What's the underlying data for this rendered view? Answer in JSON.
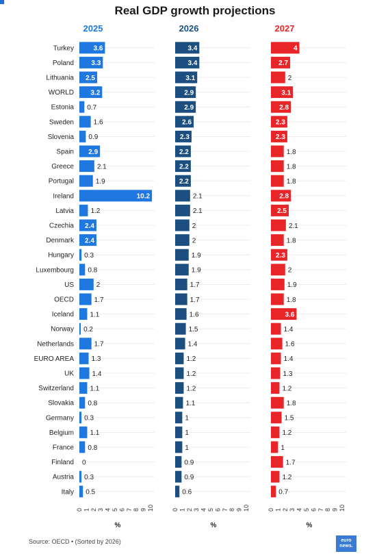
{
  "title": "Real GDP growth projections",
  "source": "Source: OECD • (Sorted by 2026)",
  "logo_text": "euro news.",
  "colors": {
    "y2025": "#1f77e0",
    "y2026": "#1c4f80",
    "y2027": "#e8262a"
  },
  "chart_data": {
    "type": "bar",
    "orientation": "horizontal",
    "title": "Real GDP growth projections",
    "categories": [
      "Turkey",
      "Poland",
      "Lithuania",
      "WORLD",
      "Estonia",
      "Sweden",
      "Slovenia",
      "Spain",
      "Greece",
      "Portugal",
      "Ireland",
      "Latvia",
      "Czechia",
      "Denmark",
      "Hungary",
      "Luxembourg",
      "US",
      "OECD",
      "Iceland",
      "Norway",
      "Netherlands",
      "EURO AREA",
      "UK",
      "Switzerland",
      "Slovakia",
      "Germany",
      "Belgium",
      "France",
      "Finland",
      "Austria",
      "Italy"
    ],
    "series": [
      {
        "name": "2025",
        "values": [
          3.6,
          3.3,
          2.5,
          3.2,
          0.7,
          1.6,
          0.9,
          2.9,
          2.1,
          1.9,
          10.2,
          1.2,
          2.4,
          2.4,
          0.3,
          0.8,
          2,
          1.7,
          1.1,
          0.2,
          1.7,
          1.3,
          1.4,
          1.1,
          0.8,
          0.3,
          1.1,
          0.8,
          0,
          0.3,
          0.5
        ]
      },
      {
        "name": "2026",
        "values": [
          3.4,
          3.4,
          3.1,
          2.9,
          2.9,
          2.6,
          2.3,
          2.2,
          2.2,
          2.2,
          2.1,
          2.1,
          2,
          2,
          1.9,
          1.9,
          1.7,
          1.7,
          1.6,
          1.5,
          1.4,
          1.2,
          1.2,
          1.2,
          1.1,
          1,
          1,
          1,
          0.9,
          0.9,
          0.6
        ]
      },
      {
        "name": "2027",
        "values": [
          4,
          2.7,
          2,
          3.1,
          2.8,
          2.3,
          2.3,
          1.8,
          1.8,
          1.8,
          2.8,
          2.5,
          2.1,
          1.8,
          2.3,
          2,
          1.9,
          1.8,
          3.6,
          1.4,
          1.6,
          1.4,
          1.3,
          1.2,
          1.8,
          1.5,
          1.2,
          1,
          1.7,
          1.2,
          0.7
        ]
      }
    ],
    "xlim": [
      0,
      10
    ],
    "xticks": [
      "0",
      "1",
      "2",
      "3",
      "4",
      "5",
      "6",
      "7",
      "8",
      "9",
      "10"
    ],
    "xlabel": "%",
    "grid": true
  }
}
